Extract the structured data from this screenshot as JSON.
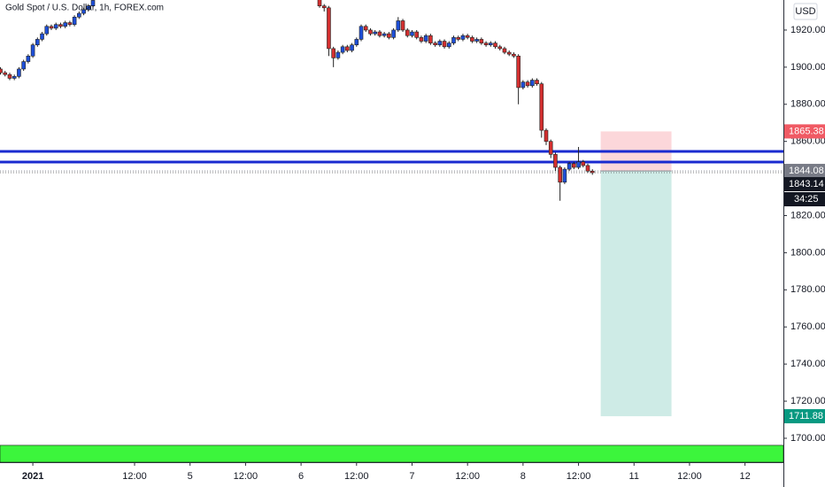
{
  "chart_data": {
    "type": "candlestick",
    "title": "Gold Spot / U.S. Dollar, 1h, FOREX.com",
    "currency": "USD",
    "x": [
      -17,
      -16,
      -15,
      -14,
      -13,
      -12,
      -11,
      -10,
      -9,
      -8,
      -7,
      -6,
      -5,
      -4,
      -3,
      -2,
      -1,
      0,
      1,
      2,
      3,
      52,
      53,
      54,
      55,
      56,
      57,
      58,
      59,
      60,
      61,
      62,
      63,
      64,
      65,
      66,
      67,
      68,
      69,
      70,
      71,
      72,
      73,
      74,
      75,
      76,
      77,
      78,
      79,
      80,
      81,
      82,
      83,
      84,
      85,
      86,
      87,
      88,
      89,
      90,
      91,
      92,
      93,
      94,
      95,
      96,
      97,
      98,
      99,
      100,
      101,
      102,
      103,
      104,
      105,
      106,
      107,
      108,
      109,
      110,
      111
    ],
    "open": [
      1899,
      1897,
      1896,
      1894,
      1895,
      1899,
      1903,
      1906,
      1912,
      1915,
      1918,
      1922,
      1921,
      1923,
      1922,
      1924,
      1923,
      1927,
      1929,
      1931,
      1933,
      1938,
      1933,
      1932,
      1910,
      1905,
      1908,
      1911,
      1909,
      1912,
      1915,
      1922,
      1920,
      1918,
      1919,
      1917,
      1918,
      1916,
      1920,
      1925,
      1920,
      1917,
      1919,
      1916,
      1914,
      1917,
      1913,
      1912,
      1914,
      1911,
      1913,
      1916,
      1915,
      1917,
      1916,
      1914,
      1915,
      1913,
      1912,
      1913,
      1911,
      1910,
      1908,
      1907,
      1906,
      1889,
      1892,
      1890,
      1893,
      1891,
      1866,
      1860,
      1853,
      1846,
      1838,
      1845,
      1848,
      1846,
      1849,
      1847,
      1844
    ],
    "high": [
      1900,
      1898,
      1897,
      1896,
      1900,
      1904,
      1907,
      1913,
      1916,
      1919,
      1923,
      1923,
      1924,
      1924,
      1925,
      1925,
      1928,
      1930,
      1932,
      1934,
      1937,
      1940,
      1934,
      1933,
      1911,
      1909,
      1912,
      1912,
      1913,
      1916,
      1923,
      1923,
      1921,
      1920,
      1920,
      1919,
      1919,
      1921,
      1927,
      1926,
      1921,
      1920,
      1920,
      1917,
      1918,
      1918,
      1914,
      1915,
      1915,
      1914,
      1917,
      1917,
      1918,
      1918,
      1917,
      1916,
      1916,
      1914,
      1914,
      1914,
      1912,
      1911,
      1909,
      1908,
      1907,
      1893,
      1893,
      1894,
      1894,
      1892,
      1867,
      1861,
      1854,
      1847,
      1846,
      1849,
      1849,
      1857,
      1850,
      1848,
      1845
    ],
    "low": [
      1896,
      1895,
      1893,
      1893,
      1894,
      1898,
      1902,
      1905,
      1911,
      1914,
      1917,
      1920,
      1920,
      1921,
      1921,
      1922,
      1922,
      1926,
      1928,
      1930,
      1932,
      1932,
      1930,
      1906,
      1900,
      1904,
      1907,
      1908,
      1908,
      1911,
      1914,
      1919,
      1917,
      1917,
      1916,
      1916,
      1915,
      1915,
      1919,
      1919,
      1916,
      1916,
      1915,
      1913,
      1913,
      1912,
      1911,
      1911,
      1910,
      1910,
      1912,
      1914,
      1914,
      1915,
      1913,
      1913,
      1912,
      1911,
      1911,
      1910,
      1909,
      1907,
      1906,
      1905,
      1880,
      1888,
      1889,
      1889,
      1890,
      1862,
      1858,
      1851,
      1844,
      1828,
      1837,
      1844,
      1845,
      1845,
      1846,
      1843,
      1842
    ],
    "close": [
      1897,
      1896,
      1894,
      1895,
      1899,
      1903,
      1906,
      1912,
      1915,
      1918,
      1922,
      1921,
      1923,
      1922,
      1924,
      1923,
      1927,
      1929,
      1931,
      1933,
      1936,
      1933,
      1932,
      1910,
      1905,
      1908,
      1911,
      1909,
      1912,
      1915,
      1922,
      1920,
      1918,
      1919,
      1917,
      1918,
      1916,
      1920,
      1925,
      1920,
      1917,
      1919,
      1916,
      1914,
      1917,
      1913,
      1912,
      1914,
      1911,
      1913,
      1916,
      1915,
      1917,
      1916,
      1914,
      1915,
      1913,
      1912,
      1913,
      1911,
      1910,
      1908,
      1907,
      1906,
      1889,
      1892,
      1890,
      1893,
      1891,
      1866,
      1860,
      1853,
      1846,
      1838,
      1845,
      1848,
      1846,
      1849,
      1847,
      1844,
      1843.14
    ],
    "up_color": "#1e4fd8",
    "down_color": "#d32f2f",
    "xlim": [
      -17.1,
      152.3
    ],
    "xticks": [
      {
        "value": -10,
        "label": "2021"
      },
      {
        "value": 12,
        "label": "12:00"
      },
      {
        "value": 24,
        "label": "5"
      },
      {
        "value": 36,
        "label": "12:00"
      },
      {
        "value": 48,
        "label": "6"
      },
      {
        "value": 60,
        "label": "12:00"
      },
      {
        "value": 72,
        "label": "7"
      },
      {
        "value": 84,
        "label": "12:00"
      },
      {
        "value": 96,
        "label": "8"
      },
      {
        "value": 108,
        "label": "12:00"
      },
      {
        "value": 120,
        "label": "11"
      },
      {
        "value": 132,
        "label": "12:00"
      },
      {
        "value": 144,
        "label": "12"
      }
    ],
    "ylim": [
      1687.1,
      1936.2
    ],
    "yticks": [
      {
        "value": 1700,
        "label": "1700.00"
      },
      {
        "value": 1720,
        "label": "1720.00"
      },
      {
        "value": 1740,
        "label": "1740.00"
      },
      {
        "value": 1760,
        "label": "1760.00"
      },
      {
        "value": 1780,
        "label": "1780.00"
      },
      {
        "value": 1800,
        "label": "1800.00"
      },
      {
        "value": 1820,
        "label": "1820.00"
      },
      {
        "value": 1840,
        "label": "1840.00"
      },
      {
        "value": 1860,
        "label": "1860.00"
      },
      {
        "value": 1880,
        "label": "1880.00"
      },
      {
        "value": 1900,
        "label": "1900.00"
      },
      {
        "value": 1920,
        "label": "1920.00"
      }
    ],
    "grid": false,
    "levels": [
      {
        "value": 1854.6,
        "color": "#1a2bd0"
      },
      {
        "value": 1848.9,
        "color": "#1a2bd0"
      }
    ],
    "zone": {
      "range": [
        1687.1,
        1696.2
      ],
      "color": "#3cf53c"
    },
    "position": {
      "x": [
        112.8,
        128.1
      ],
      "stop": 1865.38,
      "entry": 1844.08,
      "target": 1711.88
    },
    "last_price": 1843.14,
    "countdown": "34:25"
  }
}
